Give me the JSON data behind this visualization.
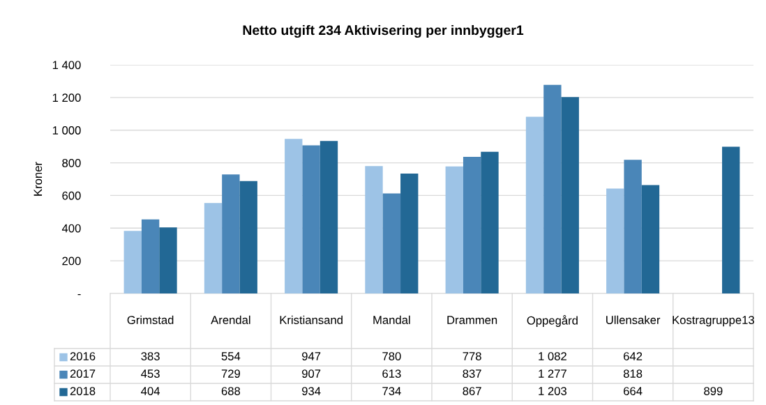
{
  "chart_data": {
    "type": "bar",
    "title": "Netto utgift 234 Aktivisering per innbygger1",
    "ylabel": "Kroner",
    "categories": [
      "Grimstad",
      "Arendal",
      "Kristiansand",
      "Mandal",
      "Drammen",
      "Oppegård",
      "Ullensaker",
      "Kostragruppe13"
    ],
    "series": [
      {
        "name": "2016",
        "color": "#9dc3e6",
        "values": [
          383,
          554,
          947,
          780,
          778,
          1082,
          642,
          null
        ],
        "value_labels": [
          "383",
          "554",
          "947",
          "780",
          "778",
          "1 082",
          "642",
          null
        ]
      },
      {
        "name": "2017",
        "color": "#4a86b8",
        "values": [
          453,
          729,
          907,
          613,
          837,
          1277,
          818,
          null
        ],
        "value_labels": [
          "453",
          "729",
          "907",
          "613",
          "837",
          "1 277",
          "818",
          null
        ]
      },
      {
        "name": "2018",
        "color": "#226895",
        "values": [
          404,
          688,
          934,
          734,
          867,
          1203,
          664,
          899
        ],
        "value_labels": [
          "404",
          "688",
          "934",
          "734",
          "867",
          "1 203",
          "664",
          "899"
        ]
      }
    ],
    "ylim": [
      0,
      1400
    ],
    "yticks": [
      {
        "value": 0,
        "label": "-"
      },
      200,
      400,
      600,
      800,
      {
        "value": 1000,
        "label": "1 000"
      },
      {
        "value": 1200,
        "label": "1 200"
      },
      {
        "value": 1400,
        "label": "1 400"
      }
    ],
    "grid": "y",
    "legend": "bottom"
  }
}
